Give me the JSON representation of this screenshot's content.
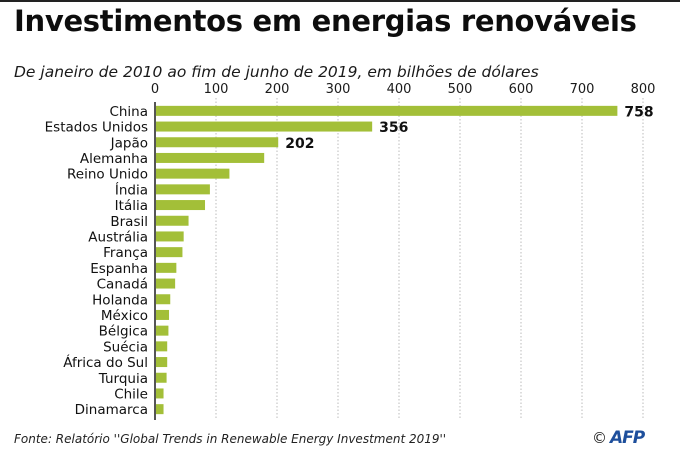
{
  "header": {
    "title": "Investimentos em energias renováveis",
    "subtitle": "De janeiro de 2010 ao fim de junho de  2019, em bilhões de dólares"
  },
  "footer": {
    "source": "Fonte: Relatório  ''Global Trends in Renewable Energy Investment 2019''",
    "copyright_symbol": "©",
    "logo_text": "AFP",
    "logo_color": "#1e4f9c"
  },
  "colors": {
    "bar": "#a3bf38",
    "axis": "#555555",
    "grid": "#bbbbbb"
  },
  "chart_data": {
    "type": "bar",
    "orientation": "horizontal",
    "title": "Investimentos em energias renováveis",
    "subtitle": "De janeiro de 2010 ao fim de junho de  2019, em bilhões de dólares",
    "xlabel": "",
    "ylabel": "",
    "xlim": [
      0,
      800
    ],
    "xticks": [
      0,
      100,
      200,
      300,
      400,
      500,
      600,
      700,
      800
    ],
    "grid": "vertical dotted",
    "categories": [
      "China",
      "Estados Unidos",
      "Japão",
      "Alemanha",
      "Reino Unido",
      "Índia",
      "Itália",
      "Brasil",
      "Austrália",
      "França",
      "Espanha",
      "Canadá",
      "Holanda",
      "México",
      "Bélgica",
      "Suécia",
      "África do Sul",
      "Turquia",
      "Chile",
      "Dinamarca"
    ],
    "values": [
      758,
      356,
      202,
      179,
      122,
      90,
      82,
      55,
      47,
      45,
      35,
      33,
      25,
      23,
      22,
      20,
      20,
      19,
      14,
      14
    ],
    "data_labels": [
      {
        "index": 0,
        "text": "758"
      },
      {
        "index": 1,
        "text": "356"
      },
      {
        "index": 2,
        "text": "202"
      }
    ]
  }
}
